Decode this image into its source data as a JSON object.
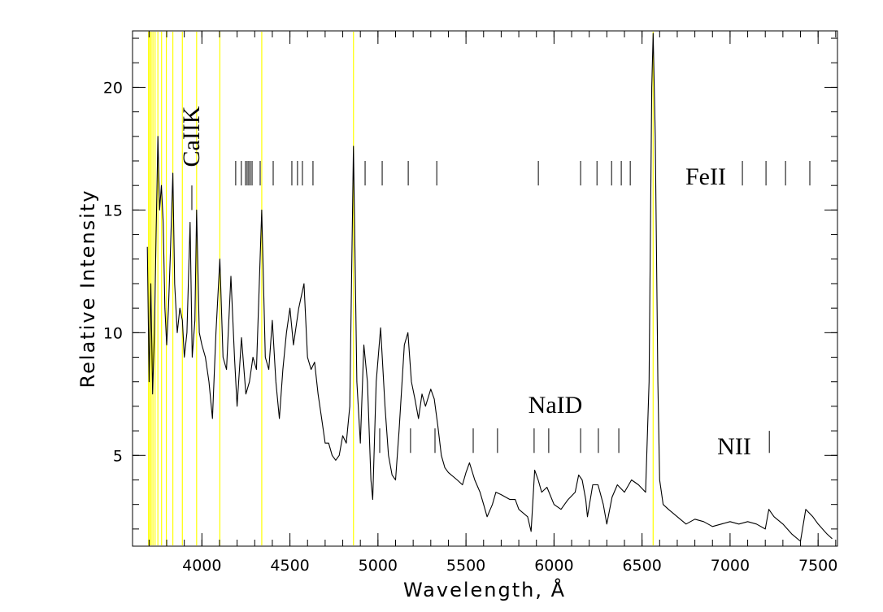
{
  "chart_data": {
    "type": "line",
    "xlabel": "Wavelength, Å",
    "ylabel": "Relative Intensity",
    "color": "#000000",
    "x": [
      3690,
      3700,
      3710,
      3720,
      3730,
      3740,
      3750,
      3760,
      3770,
      3780,
      3790,
      3800,
      3810,
      3820,
      3835,
      3845,
      3860,
      3875,
      3889,
      3900,
      3915,
      3933,
      3945,
      3960,
      3970,
      3985,
      4000,
      4020,
      4040,
      4060,
      4080,
      4102,
      4120,
      4140,
      4165,
      4185,
      4200,
      4225,
      4250,
      4270,
      4290,
      4310,
      4340,
      4360,
      4380,
      4400,
      4420,
      4440,
      4460,
      4480,
      4500,
      4520,
      4550,
      4580,
      4600,
      4620,
      4640,
      4660,
      4680,
      4700,
      4720,
      4740,
      4760,
      4780,
      4800,
      4820,
      4840,
      4861,
      4880,
      4900,
      4920,
      4940,
      4960,
      4970,
      4990,
      5015,
      5040,
      5060,
      5080,
      5100,
      5120,
      5150,
      5170,
      5190,
      5210,
      5230,
      5250,
      5270,
      5300,
      5320,
      5340,
      5360,
      5380,
      5400,
      5450,
      5480,
      5500,
      5520,
      5550,
      5580,
      5600,
      5620,
      5650,
      5670,
      5700,
      5750,
      5780,
      5800,
      5850,
      5870,
      5890,
      5910,
      5930,
      5960,
      6000,
      6040,
      6080,
      6120,
      6140,
      6160,
      6180,
      6190,
      6220,
      6250,
      6280,
      6300,
      6330,
      6360,
      6400,
      6440,
      6480,
      6520,
      6540,
      6555,
      6563,
      6575,
      6590,
      6600,
      6620,
      6650,
      6700,
      6750,
      6800,
      6850,
      6900,
      6950,
      7000,
      7050,
      7100,
      7150,
      7200,
      7220,
      7250,
      7300,
      7350,
      7400,
      7430,
      7470,
      7500,
      7550,
      7580
    ],
    "values": [
      13.5,
      8,
      12,
      7.5,
      10,
      14,
      18,
      15,
      16,
      14.5,
      11,
      9.5,
      11,
      13,
      16.5,
      12,
      10,
      11,
      10.5,
      9,
      10,
      14.5,
      9,
      10.5,
      15,
      10,
      9.5,
      9,
      8,
      6.5,
      10,
      13,
      9,
      8.5,
      12.3,
      9,
      7,
      9.8,
      7.5,
      8,
      9,
      8.5,
      15,
      9,
      8.5,
      10.5,
      8,
      6.5,
      8.5,
      10,
      11,
      9.5,
      11,
      12,
      9,
      8.5,
      8.8,
      7.5,
      6.5,
      5.5,
      5.5,
      5,
      4.8,
      5,
      5.8,
      5.5,
      7,
      17.6,
      8,
      5.5,
      9.5,
      8,
      4,
      3.2,
      8,
      10.2,
      7,
      5,
      4.2,
      4,
      6,
      9.5,
      10,
      8,
      7.3,
      6.5,
      7.5,
      7,
      7.7,
      7.3,
      6.2,
      5,
      4.5,
      4.3,
      4,
      3.8,
      4.3,
      4.7,
      4,
      3.5,
      3,
      2.5,
      3,
      3.5,
      3.4,
      3.2,
      3.2,
      2.8,
      2.5,
      1.9,
      4.4,
      4,
      3.5,
      3.7,
      3,
      2.8,
      3.2,
      3.5,
      4.2,
      4,
      3.2,
      2.5,
      3.8,
      3.8,
      3,
      2.2,
      3.3,
      3.8,
      3.5,
      4,
      3.8,
      3.5,
      8,
      20,
      22.2,
      18,
      8,
      4,
      3,
      2.8,
      2.5,
      2.2,
      2.4,
      2.3,
      2.1,
      2.2,
      2.3,
      2.2,
      2.3,
      2.2,
      2.0,
      2.8,
      2.5,
      2.2,
      1.8,
      1.5,
      2.8,
      2.5,
      2.2,
      1.8,
      1.6
    ],
    "xlim": [
      3606,
      7610
    ],
    "ylim": [
      1.3,
      22.3
    ],
    "xticks": [
      4000,
      4500,
      5000,
      5500,
      6000,
      6500,
      7000,
      7500
    ],
    "yticks": [
      5,
      10,
      15,
      20
    ],
    "xminorticks": [
      3700,
      3800,
      3900,
      4000,
      4100,
      4200,
      4300,
      4400,
      4500,
      4600,
      4700,
      4800,
      4900,
      5000,
      5100,
      5200,
      5300,
      5400,
      5500,
      5600,
      5700,
      5800,
      5900,
      6000,
      6100,
      6200,
      6300,
      6400,
      6500,
      6600,
      6700,
      6800,
      6900,
      7000,
      7100,
      7200,
      7300,
      7400,
      7500,
      7600
    ],
    "yminorticks": [
      2,
      3,
      4,
      5,
      6,
      7,
      8,
      9,
      10,
      11,
      12,
      13,
      14,
      15,
      16,
      17,
      18,
      19,
      20,
      21,
      22
    ],
    "reference_lines": {
      "color": "#ffff00",
      "x": [
        3697,
        3704,
        3712,
        3722,
        3734,
        3750,
        3771,
        3798,
        3835,
        3889,
        3970,
        4102,
        4340,
        4861,
        6563
      ]
    },
    "line_markers": [
      {
        "label": "CaIIK",
        "x": [
          3943
        ],
        "y_range": [
          15.0,
          16.0
        ]
      },
      {
        "label": "FeII",
        "x": [
          4192,
          4224,
          4248,
          4257,
          4266,
          4275,
          4285,
          4331,
          4405,
          4511,
          4543,
          4571,
          4631,
          4927,
          5024,
          5172,
          5334,
          5911,
          6151,
          6244,
          6327,
          6382,
          6433,
          7070,
          7204,
          7315,
          7453
        ],
        "y_range": [
          16.0,
          17.0
        ]
      },
      {
        "label": "NaID",
        "x": [
          5010,
          5185,
          5324,
          5541,
          5679,
          5887,
          5970,
          6151,
          6252,
          6368
        ],
        "y_range": [
          5.1,
          6.1
        ]
      },
      {
        "label": "NII",
        "x": [
          7223
        ],
        "y_range": [
          5.1,
          6.0
        ]
      }
    ]
  }
}
